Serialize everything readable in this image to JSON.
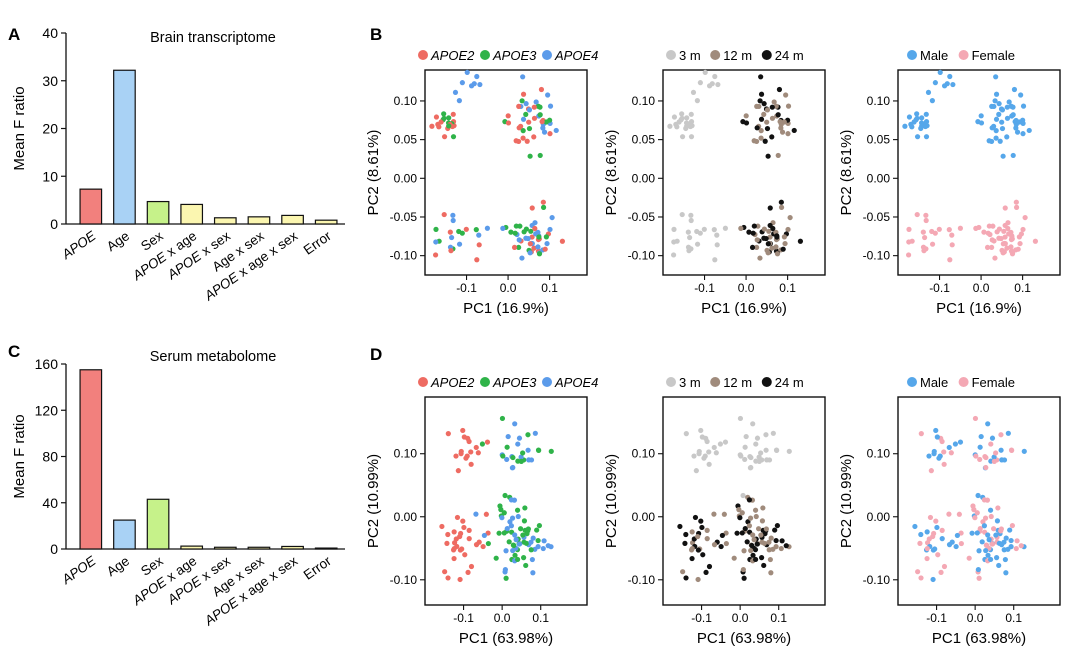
{
  "colors": {
    "apoe2": "#ee6b62",
    "apoe3": "#2fb349",
    "apoe4": "#5b9bea",
    "m3": "#c8c8c8",
    "m12": "#a08b7c",
    "m24": "#111111",
    "male": "#56a7ea",
    "female": "#f4a8b4",
    "bars": [
      "#f2807d",
      "#a9d2f5",
      "#c6f28a",
      "#fbf6b0",
      "#fbf6b0",
      "#fbf6b0",
      "#fbf6b0",
      "#fbf6b0"
    ]
  },
  "panels": {
    "A": "A",
    "B": "B",
    "C": "C",
    "D": "D"
  },
  "chart_data": [
    {
      "id": "A",
      "type": "bar",
      "title": "Brain transcriptome",
      "ylabel": "Mean F ratio",
      "categories": [
        "APOE",
        "Age",
        "Sex",
        "APOE x age",
        "APOE x sex",
        "Age x sex",
        "APOE x age x sex",
        "Error"
      ],
      "values": [
        7.3,
        32.2,
        4.7,
        4.1,
        1.3,
        1.5,
        1.8,
        0.8
      ],
      "ylim": [
        0,
        40
      ],
      "yticks": [
        "0",
        "10",
        "20",
        "30",
        "40"
      ]
    },
    {
      "id": "C",
      "type": "bar",
      "title": "Serum metabolome",
      "ylabel": "Mean F ratio",
      "categories": [
        "APOE",
        "Age",
        "Sex",
        "APOE x age",
        "APOE x sex",
        "Age x sex",
        "APOE x age x sex",
        "Error"
      ],
      "values": [
        155,
        25,
        43,
        2.5,
        1.5,
        1.5,
        2.2,
        0.8
      ],
      "ylim": [
        0,
        160
      ],
      "yticks": [
        "0",
        "40",
        "80",
        "120",
        "160"
      ]
    },
    {
      "id": "B",
      "type": "scatter",
      "xlabel": "PC1 (16.9%)",
      "ylabel": "PC2 (8.61%)",
      "xlim": [
        -0.2,
        0.19
      ],
      "ylim": [
        -0.125,
        0.14
      ],
      "xticks": [
        "-0.1",
        "0.0",
        "0.1"
      ],
      "yticks": [
        "-0.10",
        "-0.05",
        "0.00",
        "0.05",
        "0.10"
      ],
      "clusters": [
        {
          "x": -0.15,
          "y": 0.073,
          "sx": 0.018,
          "sy": 0.012,
          "n": 20,
          "genotype": "mix23",
          "age": "3m"
        },
        {
          "x": -0.09,
          "y": 0.115,
          "sx": 0.025,
          "sy": 0.012,
          "n": 8,
          "genotype": "apoe4",
          "age": "3m"
        },
        {
          "x": 0.055,
          "y": 0.075,
          "sx": 0.035,
          "sy": 0.025,
          "n": 45,
          "genotype": "mixall",
          "age": "old"
        },
        {
          "x": -0.13,
          "y": -0.07,
          "sx": 0.035,
          "sy": 0.017,
          "n": 22,
          "genotype": "mixall",
          "age": "3m"
        },
        {
          "x": 0.06,
          "y": -0.075,
          "sx": 0.035,
          "sy": 0.018,
          "n": 50,
          "genotype": "mixall",
          "age": "old"
        }
      ],
      "subplots": [
        {
          "legend": [
            "APOE2",
            "APOE3",
            "APOE4"
          ],
          "italic": true,
          "colorby": "genotype"
        },
        {
          "legend": [
            "3 m",
            "12 m",
            "24 m"
          ],
          "italic": false,
          "colorby": "age"
        },
        {
          "legend": [
            "Male",
            "Female"
          ],
          "italic": false,
          "colorby": "sex"
        }
      ]
    },
    {
      "id": "D",
      "type": "scatter",
      "xlabel": "PC1 (63.98%)",
      "ylabel": "PC2 (10.99%)",
      "xlim": [
        -0.2,
        0.22
      ],
      "ylim": [
        -0.14,
        0.19
      ],
      "xticks": [
        "-0.1",
        "0.0",
        "0.1"
      ],
      "yticks": [
        "-0.10",
        "0.00",
        "0.10"
      ],
      "clusters": [
        {
          "x": -0.085,
          "y": 0.1,
          "sx": 0.025,
          "sy": 0.025,
          "n": 16,
          "genotype": "apoe2",
          "age": "3m"
        },
        {
          "x": 0.04,
          "y": 0.11,
          "sx": 0.035,
          "sy": 0.025,
          "n": 28,
          "genotype": "mix34",
          "age": "3m"
        },
        {
          "x": -0.11,
          "y": -0.04,
          "sx": 0.035,
          "sy": 0.03,
          "n": 30,
          "genotype": "apoe2",
          "age": "old"
        },
        {
          "x": 0.04,
          "y": -0.04,
          "sx": 0.04,
          "sy": 0.035,
          "n": 70,
          "genotype": "mix34",
          "age": "old"
        }
      ],
      "subplots": [
        {
          "legend": [
            "APOE2",
            "APOE3",
            "APOE4"
          ],
          "italic": true,
          "colorby": "genotype"
        },
        {
          "legend": [
            "3 m",
            "12 m",
            "24 m"
          ],
          "italic": false,
          "colorby": "age"
        },
        {
          "legend": [
            "Male",
            "Female"
          ],
          "italic": false,
          "colorby": "sex"
        }
      ]
    }
  ]
}
